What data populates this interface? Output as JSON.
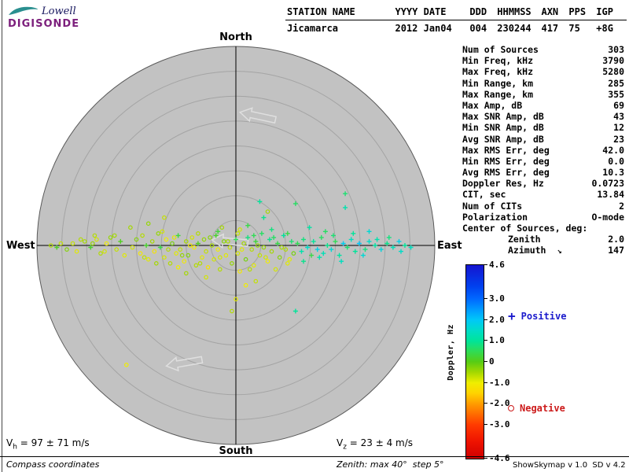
{
  "logo": {
    "line1": "Lowell",
    "line2": "DIGISONDE"
  },
  "header": {
    "columns": [
      {
        "label": "STATION NAME",
        "value": "Jicamarca"
      },
      {
        "label": "YYYY DATE",
        "value": "2012 Jan04"
      },
      {
        "label": "DDD",
        "value": "004"
      },
      {
        "label": "HHMMSS",
        "value": "230244"
      },
      {
        "label": "AXN",
        "value": "417"
      },
      {
        "label": "PPS",
        "value": "75"
      },
      {
        "label": "IGP",
        "value": "+8G"
      }
    ]
  },
  "compass": {
    "north": "North",
    "south": "South",
    "east": "East",
    "west": "West"
  },
  "stats": {
    "rows": [
      {
        "label": "Num of Sources",
        "value": "303"
      },
      {
        "label": "Min Freq, kHz",
        "value": "3790"
      },
      {
        "label": "Max Freq, kHz",
        "value": "5280"
      },
      {
        "label": "Min Range, km",
        "value": "285"
      },
      {
        "label": "Max Range, km",
        "value": "355"
      },
      {
        "label": "Max Amp, dB",
        "value": "69"
      },
      {
        "label": "Max SNR Amp, dB",
        "value": "43"
      },
      {
        "label": "Min SNR Amp, dB",
        "value": "12"
      },
      {
        "label": "Avg SNR Amp, dB",
        "value": "23"
      },
      {
        "label": "Max RMS Err, deg",
        "value": "42.0"
      },
      {
        "label": "Min RMS Err, deg",
        "value": "0.0"
      },
      {
        "label": "Avg RMS Err, deg",
        "value": "10.3"
      },
      {
        "label": "Doppler Res, Hz",
        "value": "0.0723"
      },
      {
        "label": "CIT, sec",
        "value": "13.84"
      },
      {
        "label": "Num of CITs",
        "value": "2"
      },
      {
        "label": "Polarization",
        "value": "O-mode"
      },
      {
        "label": "Center of Sources, deg:",
        "value": ""
      },
      {
        "label": "Zenith",
        "value": "2.0",
        "indent": true
      },
      {
        "label": "Azimuth",
        "value": "147",
        "indent": true,
        "arrow": "↘"
      }
    ]
  },
  "colorbar": {
    "title": "Doppler, Hz",
    "max": 4.6,
    "min": -4.6,
    "ticks": [
      {
        "v": 4.6,
        "label": "4.6"
      },
      {
        "v": 3.0,
        "label": "3.0"
      },
      {
        "v": 2.0,
        "label": "2.0"
      },
      {
        "v": 1.0,
        "label": "1.0"
      },
      {
        "v": 0.0,
        "label": "0"
      },
      {
        "v": -1.0,
        "label": "-1.0"
      },
      {
        "v": -2.0,
        "label": "-2.0"
      },
      {
        "v": -3.0,
        "label": "-3.0"
      },
      {
        "v": -4.6,
        "label": "-4.6"
      }
    ],
    "stops": [
      {
        "v": 4.6,
        "c": "#1515d0"
      },
      {
        "v": 3.6,
        "c": "#0040ee"
      },
      {
        "v": 3.0,
        "c": "#0068ff"
      },
      {
        "v": 2.4,
        "c": "#00a2ff"
      },
      {
        "v": 2.0,
        "c": "#00c8f8"
      },
      {
        "v": 1.5,
        "c": "#00dcc8"
      },
      {
        "v": 1.0,
        "c": "#00e49a"
      },
      {
        "v": 0.5,
        "c": "#30dc55"
      },
      {
        "v": 0.0,
        "c": "#58cc14"
      },
      {
        "v": -0.5,
        "c": "#a4d800"
      },
      {
        "v": -1.0,
        "c": "#f0ee00"
      },
      {
        "v": -1.5,
        "c": "#ffd200"
      },
      {
        "v": -2.0,
        "c": "#ff9c00"
      },
      {
        "v": -2.5,
        "c": "#ff6a00"
      },
      {
        "v": -3.0,
        "c": "#ff3a00"
      },
      {
        "v": -3.8,
        "c": "#ee1200"
      },
      {
        "v": -4.6,
        "c": "#cf0000"
      }
    ]
  },
  "legend": {
    "positive": {
      "marker": "+",
      "label": "Positive",
      "color": "#1a1acc"
    },
    "negative": {
      "marker": "o",
      "label": "Negative",
      "color": "#cc1a1a"
    }
  },
  "velocities": {
    "vh": {
      "symbol": "V",
      "sub": "h",
      "text": " = 97 ± 71 m/s"
    },
    "vz": {
      "symbol": "V",
      "sub": "z",
      "text": " = 23 ± 4 m/s"
    }
  },
  "footer": {
    "coords": "Compass coordinates",
    "zenith": "Zenith: max 40°  step 5°",
    "version": "ShowSkymap v 1.0  SD v 4.2"
  },
  "colors": {
    "plot_bg": "#c2c2c2",
    "ring": "#a4a4a4",
    "outer_ring": "#5a5a5a",
    "axis": "#000000",
    "arrow_outline": "#dfdfdf"
  },
  "chart_data": {
    "type": "scatter",
    "title": "Skymap of ionospheric echo sources",
    "projection": "polar skymap, compass coordinates (North up, East right)",
    "zenith_max_deg": 40,
    "zenith_step_deg": 5,
    "color_scale": {
      "label": "Doppler, Hz",
      "min": -4.6,
      "max": 4.6
    },
    "marker_rule": "Doppler >= 0 drawn as '+' (positive), Doppler < 0 drawn as 'o' (negative)",
    "points_unit": "[east_offset_fraction_of_40deg_radius, north_offset_fraction, doppler_hz]",
    "points": [
      [
        -0.93,
        0.0,
        -0.6
      ],
      [
        -0.9,
        -0.01,
        0.1
      ],
      [
        -0.82,
        0.01,
        -0.7
      ],
      [
        -0.8,
        -0.03,
        -0.9
      ],
      [
        -0.76,
        0.02,
        -0.5
      ],
      [
        -0.73,
        -0.01,
        0.2
      ],
      [
        -0.71,
        0.05,
        -0.6
      ],
      [
        -0.7,
        0.03,
        -0.8
      ],
      [
        -0.68,
        -0.04,
        -0.6
      ],
      [
        -0.65,
        0.01,
        -1.0
      ],
      [
        -0.63,
        0.04,
        -0.4
      ],
      [
        -0.6,
        -0.02,
        -0.7
      ],
      [
        -0.58,
        0.02,
        0.1
      ],
      [
        -0.56,
        -0.05,
        -0.9
      ],
      [
        -0.53,
        0.09,
        -0.5
      ],
      [
        -0.52,
        -0.01,
        -0.8
      ],
      [
        -0.5,
        0.03,
        -0.3
      ],
      [
        -0.48,
        -0.04,
        -1.1
      ],
      [
        -0.47,
        0.05,
        -0.6
      ],
      [
        -0.45,
        0.0,
        0.2
      ],
      [
        -0.44,
        -0.07,
        -0.9
      ],
      [
        -0.42,
        0.02,
        -0.5
      ],
      [
        -0.41,
        -0.03,
        -1.2
      ],
      [
        -0.39,
        0.06,
        -0.4
      ],
      [
        -0.38,
        -0.01,
        0.4
      ],
      [
        -0.36,
        -0.06,
        -0.8
      ],
      [
        -0.35,
        0.03,
        -1.0
      ],
      [
        -0.33,
        -0.09,
        -0.6
      ],
      [
        -0.32,
        0.01,
        -0.2
      ],
      [
        -0.3,
        -0.04,
        -0.9
      ],
      [
        -0.29,
        0.05,
        0.3
      ],
      [
        -0.28,
        -0.02,
        -0.7
      ],
      [
        -0.26,
        -0.08,
        -1.1
      ],
      [
        -0.25,
        0.02,
        -0.5
      ],
      [
        -0.24,
        -0.05,
        -0.3
      ],
      [
        -0.22,
        0.04,
        -0.8
      ],
      [
        -0.21,
        -0.01,
        -1.0
      ],
      [
        -0.2,
        -0.1,
        -0.6
      ],
      [
        -0.19,
        0.01,
        0.1
      ],
      [
        -0.17,
        -0.06,
        -0.9
      ],
      [
        -0.16,
        0.03,
        -0.4
      ],
      [
        -0.15,
        -0.03,
        -0.7
      ],
      [
        -0.14,
        -0.11,
        -1.2
      ],
      [
        -0.12,
        0.0,
        -0.5
      ],
      [
        -0.11,
        -0.07,
        -0.8
      ],
      [
        -0.1,
        0.05,
        0.2
      ],
      [
        -0.09,
        -0.02,
        -1.0
      ],
      [
        -0.08,
        -0.12,
        -0.6
      ],
      [
        -0.06,
        0.02,
        -0.3
      ],
      [
        -0.05,
        -0.05,
        -0.9
      ],
      [
        -0.03,
        -0.01,
        -0.7
      ],
      [
        -0.02,
        -0.09,
        -0.4
      ],
      [
        0.0,
        0.03,
        0.5
      ],
      [
        0.01,
        -0.04,
        -0.8
      ],
      [
        0.02,
        -0.13,
        -1.1
      ],
      [
        0.04,
        0.01,
        -0.5
      ],
      [
        0.05,
        -0.07,
        -0.2
      ],
      [
        0.06,
        0.04,
        0.8
      ],
      [
        0.08,
        -0.02,
        -0.6
      ],
      [
        0.09,
        -0.1,
        -0.9
      ],
      [
        0.1,
        0.02,
        0.3
      ],
      [
        0.12,
        -0.05,
        -0.7
      ],
      [
        0.13,
        0.06,
        0.6
      ],
      [
        0.14,
        -0.01,
        -0.4
      ],
      [
        0.16,
        -0.08,
        -1.0
      ],
      [
        0.17,
        0.03,
        0.9
      ],
      [
        0.18,
        -0.03,
        -0.5
      ],
      [
        0.2,
        -0.12,
        -0.8
      ],
      [
        0.21,
        0.01,
        0.4
      ],
      [
        0.22,
        -0.06,
        -0.3
      ],
      [
        0.24,
        0.05,
        1.0
      ],
      [
        0.25,
        -0.02,
        -0.6
      ],
      [
        0.26,
        -0.09,
        -0.9
      ],
      [
        0.28,
        0.02,
        0.7
      ],
      [
        0.29,
        -0.04,
        -0.2
      ],
      [
        0.31,
        0.01,
        0.5
      ],
      [
        0.33,
        -0.03,
        1.2
      ],
      [
        0.34,
        0.03,
        0.8
      ],
      [
        0.36,
        -0.01,
        1.5
      ],
      [
        0.38,
        -0.05,
        0.4
      ],
      [
        0.39,
        0.02,
        1.0
      ],
      [
        0.41,
        -0.02,
        1.8
      ],
      [
        0.43,
        0.04,
        0.6
      ],
      [
        0.44,
        -0.04,
        1.3
      ],
      [
        0.46,
        0.0,
        0.9
      ],
      [
        0.48,
        -0.02,
        1.6
      ],
      [
        0.5,
        0.02,
        0.5
      ],
      [
        0.52,
        -0.05,
        1.1
      ],
      [
        0.54,
        0.01,
        1.9
      ],
      [
        0.56,
        -0.01,
        0.7
      ],
      [
        0.58,
        0.03,
        1.4
      ],
      [
        0.6,
        -0.03,
        1.0
      ],
      [
        0.62,
        0.01,
        2.0
      ],
      [
        0.65,
        -0.02,
        0.8
      ],
      [
        0.67,
        0.02,
        1.5
      ],
      [
        0.7,
        0.0,
        1.1
      ],
      [
        0.73,
        -0.02,
        1.7
      ],
      [
        0.76,
        0.01,
        0.9
      ],
      [
        0.79,
        -0.01,
        1.3
      ],
      [
        0.82,
        0.02,
        1.8
      ],
      [
        0.85,
        0.0,
        1.0
      ],
      [
        0.88,
        -0.01,
        1.4
      ],
      [
        0.16,
        0.17,
        -0.5
      ],
      [
        0.14,
        0.14,
        0.9
      ],
      [
        0.3,
        0.21,
        0.6
      ],
      [
        0.55,
        0.19,
        1.2
      ],
      [
        0.67,
        0.07,
        1.6
      ],
      [
        0.3,
        -0.33,
        1.0
      ],
      [
        0.0,
        -0.27,
        -0.9
      ],
      [
        -0.02,
        -0.33,
        -0.6
      ],
      [
        -0.55,
        -0.6,
        -1.0
      ],
      [
        -0.36,
        0.14,
        -0.7
      ],
      [
        -0.44,
        0.11,
        -0.4
      ],
      [
        0.06,
        0.1,
        0.4
      ],
      [
        0.02,
        0.08,
        -0.8
      ],
      [
        -0.07,
        0.09,
        -0.5
      ],
      [
        0.37,
        0.09,
        1.1
      ],
      [
        0.45,
        0.07,
        0.6
      ],
      [
        0.1,
        -0.18,
        -0.7
      ],
      [
        0.05,
        -0.2,
        -1.0
      ],
      [
        -0.15,
        -0.16,
        -0.8
      ],
      [
        -0.25,
        -0.14,
        -0.5
      ],
      [
        0.55,
        0.26,
        0.7
      ],
      [
        0.12,
        0.22,
        1.0
      ],
      [
        -0.34,
        -0.02,
        -0.6
      ],
      [
        -0.31,
        0.04,
        -0.9
      ],
      [
        -0.27,
        -0.05,
        -0.4
      ],
      [
        -0.23,
        0.0,
        -1.1
      ],
      [
        -0.18,
        -0.09,
        -0.6
      ],
      [
        -0.13,
        0.04,
        -0.3
      ],
      [
        -0.08,
        -0.06,
        -0.8
      ],
      [
        -0.04,
        0.02,
        -0.5
      ],
      [
        0.03,
        -0.02,
        -0.9
      ],
      [
        0.07,
        -0.12,
        -0.6
      ],
      [
        0.11,
        0.0,
        -0.4
      ],
      [
        0.15,
        -0.06,
        -0.8
      ],
      [
        0.19,
        0.04,
        0.6
      ],
      [
        0.23,
        -0.01,
        -0.5
      ],
      [
        0.27,
        -0.07,
        -0.9
      ],
      [
        -0.46,
        -0.06,
        -0.7
      ],
      [
        -0.4,
        -0.09,
        -0.5
      ],
      [
        -0.37,
        0.07,
        -0.8
      ],
      [
        -0.29,
        -0.11,
        -1.0
      ],
      [
        -0.19,
        0.06,
        -0.6
      ],
      [
        -0.09,
        0.07,
        0.3
      ],
      [
        0.01,
        0.06,
        -0.7
      ],
      [
        0.09,
        0.05,
        0.5
      ],
      [
        0.18,
        0.08,
        0.8
      ],
      [
        0.26,
        0.06,
        0.4
      ],
      [
        0.34,
        -0.08,
        0.9
      ],
      [
        0.42,
        -0.06,
        1.2
      ],
      [
        0.49,
        0.05,
        0.7
      ],
      [
        0.53,
        -0.08,
        1.4
      ],
      [
        0.59,
        0.06,
        1.0
      ],
      [
        0.64,
        -0.05,
        1.6
      ],
      [
        0.71,
        0.03,
        1.2
      ],
      [
        0.77,
        0.04,
        0.8
      ],
      [
        0.83,
        -0.03,
        1.5
      ],
      [
        -0.61,
        0.05,
        -0.5
      ],
      [
        -0.66,
        -0.03,
        -0.8
      ],
      [
        -0.72,
        0.01,
        -0.4
      ],
      [
        -0.78,
        0.03,
        -0.6
      ],
      [
        -0.85,
        -0.02,
        -0.3
      ],
      [
        -0.88,
        0.01,
        -0.7
      ]
    ],
    "arrows": [
      {
        "x": 0.11,
        "y": 0.65,
        "rot": 12
      },
      {
        "x": -0.03,
        "y": 0.02,
        "rot": 5
      },
      {
        "x": -0.26,
        "y": -0.59,
        "rot": -10
      }
    ]
  }
}
